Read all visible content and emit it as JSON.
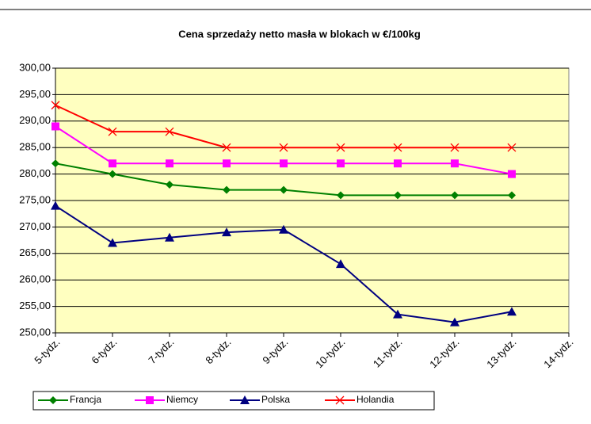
{
  "chart_data": {
    "type": "line",
    "title": "Cena sprzedaży netto masła w blokach w €/100kg",
    "categories": [
      "5-tydz.",
      "6-tydz.",
      "7-tydz.",
      "8-tydz.",
      "9-tydz.",
      "10-tydz.",
      "11-tydz.",
      "12-tydz.",
      "13-tydz.",
      "14-tydz."
    ],
    "series": [
      {
        "name": "Francja",
        "color": "#008000",
        "marker": "diamond",
        "values": [
          282,
          280,
          278,
          277,
          277,
          276,
          276,
          276,
          276,
          null
        ]
      },
      {
        "name": "Niemcy",
        "color": "#ff00ff",
        "marker": "square",
        "values": [
          289,
          282,
          282,
          282,
          282,
          282,
          282,
          282,
          280,
          null
        ]
      },
      {
        "name": "Polska",
        "color": "#000080",
        "marker": "triangle",
        "values": [
          274,
          267,
          268,
          269,
          269.5,
          263,
          253.5,
          252,
          254,
          null
        ]
      },
      {
        "name": "Holandia",
        "color": "#ff0000",
        "marker": "x",
        "values": [
          293,
          288,
          288,
          285,
          285,
          285,
          285,
          285,
          285,
          null
        ]
      }
    ],
    "ylim": [
      250,
      300
    ],
    "yticks": [
      {
        "value": 250,
        "label": "250,00"
      },
      {
        "value": 255,
        "label": "255,00"
      },
      {
        "value": 260,
        "label": "260,00"
      },
      {
        "value": 265,
        "label": "265,00"
      },
      {
        "value": 270,
        "label": "270,00"
      },
      {
        "value": 275,
        "label": "275,00"
      },
      {
        "value": 280,
        "label": "280,00"
      },
      {
        "value": 285,
        "label": "285,00"
      },
      {
        "value": 290,
        "label": "290,00"
      },
      {
        "value": 295,
        "label": "295,00"
      },
      {
        "value": 300,
        "label": "300,00"
      }
    ],
    "grid": true,
    "plot_background": "#ffffc0",
    "legend": "bottom"
  }
}
